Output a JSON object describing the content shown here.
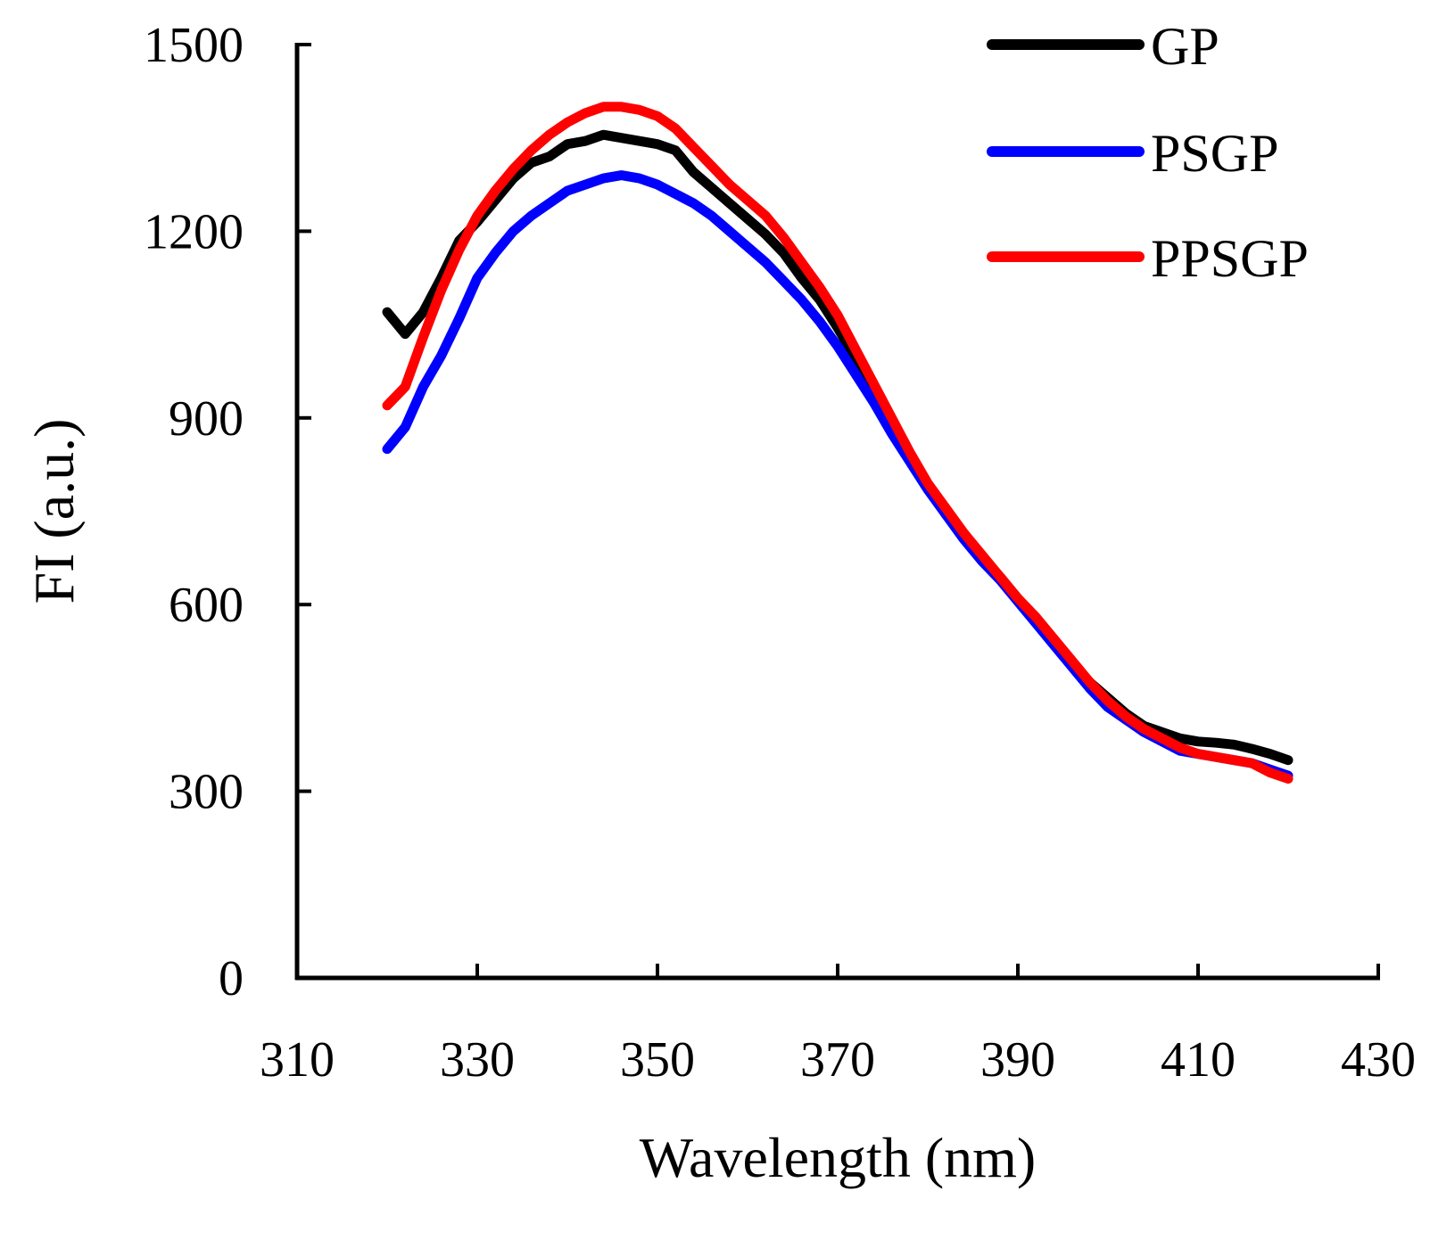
{
  "chart_data": {
    "type": "line",
    "title": "",
    "xlabel": "Wavelength (nm)",
    "ylabel": "FI (a.u.)",
    "xlim": [
      310,
      430
    ],
    "ylim": [
      0,
      1500
    ],
    "xticks": [
      "310",
      "330",
      "350",
      "370",
      "390",
      "410",
      "430"
    ],
    "yticks": [
      "0",
      "300",
      "600",
      "900",
      "1200",
      "1500"
    ],
    "legend_position": "top-right",
    "grid": false,
    "series": [
      {
        "name": "GP",
        "color": "#000000",
        "x": [
          320,
          322,
          324,
          326,
          328,
          330,
          332,
          334,
          336,
          338,
          340,
          342,
          344,
          346,
          348,
          350,
          352,
          354,
          356,
          358,
          360,
          362,
          364,
          366,
          368,
          370,
          372,
          374,
          376,
          378,
          380,
          382,
          384,
          386,
          388,
          390,
          392,
          394,
          396,
          398,
          400,
          402,
          404,
          406,
          408,
          410,
          412,
          414,
          416,
          418,
          420
        ],
        "y": [
          1070,
          1035,
          1070,
          1125,
          1185,
          1215,
          1250,
          1285,
          1310,
          1320,
          1340,
          1345,
          1355,
          1350,
          1345,
          1340,
          1330,
          1295,
          1270,
          1245,
          1220,
          1195,
          1165,
          1125,
          1090,
          1045,
          995,
          945,
          890,
          835,
          790,
          745,
          710,
          675,
          645,
          610,
          575,
          540,
          505,
          475,
          450,
          425,
          405,
          395,
          385,
          380,
          378,
          375,
          368,
          360,
          350
        ]
      },
      {
        "name": "PSGP",
        "color": "#0000ff",
        "x": [
          320,
          322,
          324,
          326,
          328,
          330,
          332,
          334,
          336,
          338,
          340,
          342,
          344,
          346,
          348,
          350,
          352,
          354,
          356,
          358,
          360,
          362,
          364,
          366,
          368,
          370,
          372,
          374,
          376,
          378,
          380,
          382,
          384,
          386,
          388,
          390,
          392,
          394,
          396,
          398,
          400,
          402,
          404,
          406,
          408,
          410,
          412,
          414,
          416,
          418,
          420
        ],
        "y": [
          850,
          885,
          950,
          1000,
          1060,
          1125,
          1165,
          1200,
          1225,
          1245,
          1265,
          1275,
          1285,
          1290,
          1285,
          1275,
          1260,
          1245,
          1225,
          1200,
          1175,
          1150,
          1120,
          1090,
          1055,
          1015,
          970,
          925,
          875,
          830,
          785,
          745,
          705,
          670,
          640,
          605,
          570,
          535,
          500,
          465,
          435,
          415,
          395,
          380,
          365,
          360,
          355,
          350,
          345,
          335,
          325
        ]
      },
      {
        "name": "PPSGP",
        "color": "#ff0000",
        "x": [
          320,
          322,
          324,
          326,
          328,
          330,
          332,
          334,
          336,
          338,
          340,
          342,
          344,
          346,
          348,
          350,
          352,
          354,
          356,
          358,
          360,
          362,
          364,
          366,
          368,
          370,
          372,
          374,
          376,
          378,
          380,
          382,
          384,
          386,
          388,
          390,
          392,
          394,
          396,
          398,
          400,
          402,
          404,
          406,
          408,
          410,
          412,
          414,
          416,
          418,
          420
        ],
        "y": [
          920,
          950,
          1030,
          1105,
          1170,
          1225,
          1265,
          1300,
          1330,
          1355,
          1375,
          1390,
          1400,
          1400,
          1395,
          1385,
          1365,
          1335,
          1305,
          1275,
          1250,
          1225,
          1190,
          1150,
          1110,
          1065,
          1010,
          955,
          900,
          845,
          795,
          755,
          715,
          680,
          645,
          610,
          580,
          545,
          510,
          475,
          445,
          420,
          400,
          385,
          370,
          360,
          355,
          350,
          345,
          330,
          320
        ]
      }
    ]
  }
}
